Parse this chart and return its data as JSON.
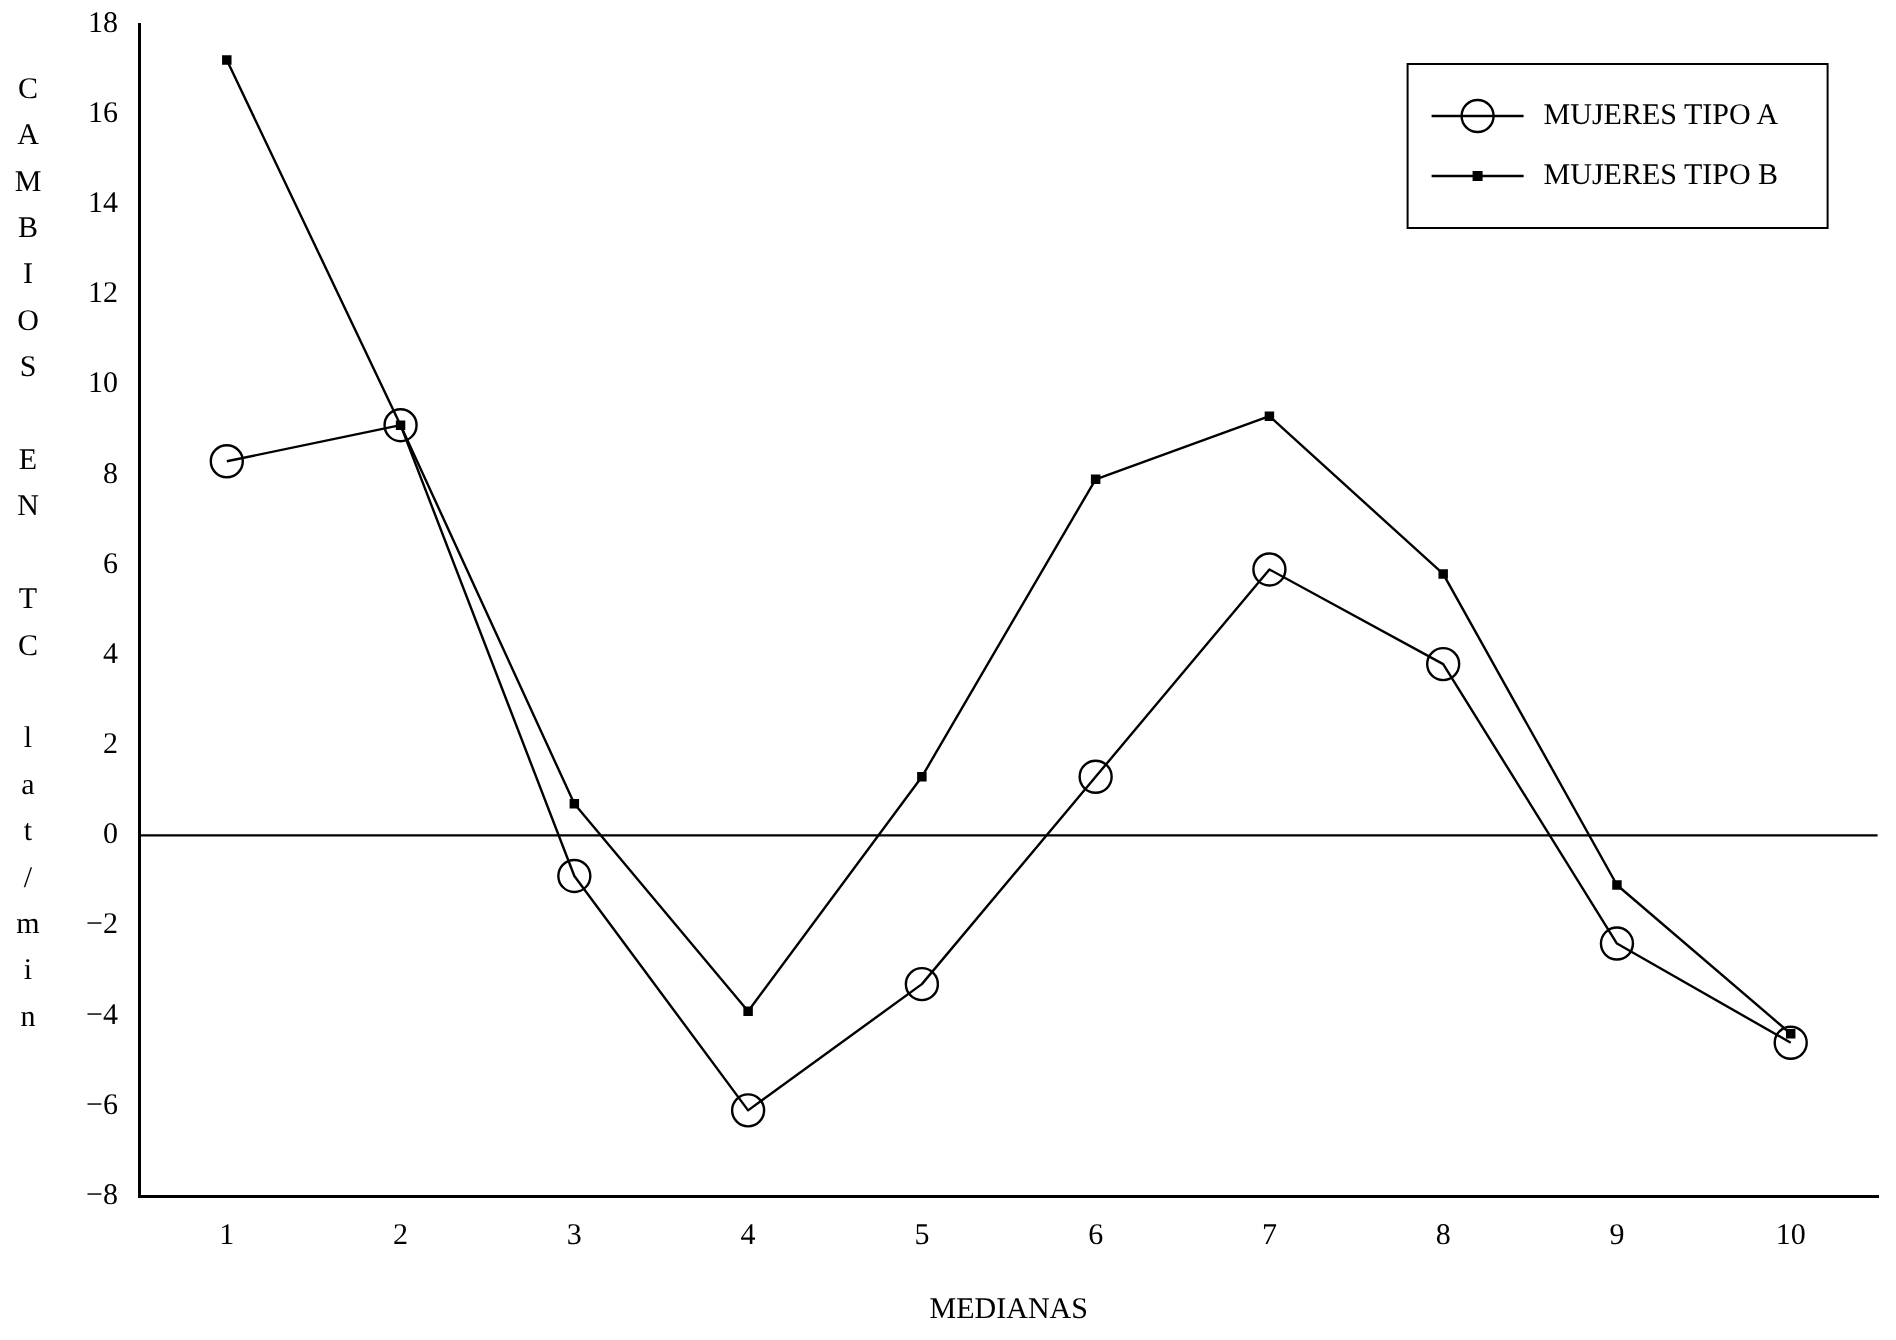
{
  "chart_data": {
    "type": "line",
    "xlabel": "MEDIANAS",
    "ylabel": "CAMBIOS EN TC lat/min",
    "categories": [
      "1",
      "2",
      "3",
      "4",
      "5",
      "6",
      "7",
      "8",
      "9",
      "10"
    ],
    "series": [
      {
        "name": "MUJERES TIPO A",
        "color": "#000000",
        "marker": "circle",
        "values": [
          8.3,
          9.1,
          -0.9,
          -6.1,
          -3.3,
          1.3,
          5.9,
          3.8,
          -2.4,
          -4.6
        ]
      },
      {
        "name": "MUJERES TIPO B",
        "color": "#000000",
        "marker": "square",
        "values": [
          17.2,
          9.1,
          0.7,
          -3.9,
          1.3,
          7.9,
          9.3,
          5.8,
          -1.1,
          -4.4
        ]
      }
    ],
    "ylim": [
      -8,
      18
    ],
    "yticks": [
      -8,
      -6,
      -4,
      -2,
      0,
      2,
      4,
      6,
      8,
      10,
      12,
      14,
      16,
      18
    ],
    "ref_lines": [
      {
        "axis": "y",
        "value": 0,
        "color": "#000000"
      }
    ],
    "grid": false,
    "legend": "top right"
  }
}
